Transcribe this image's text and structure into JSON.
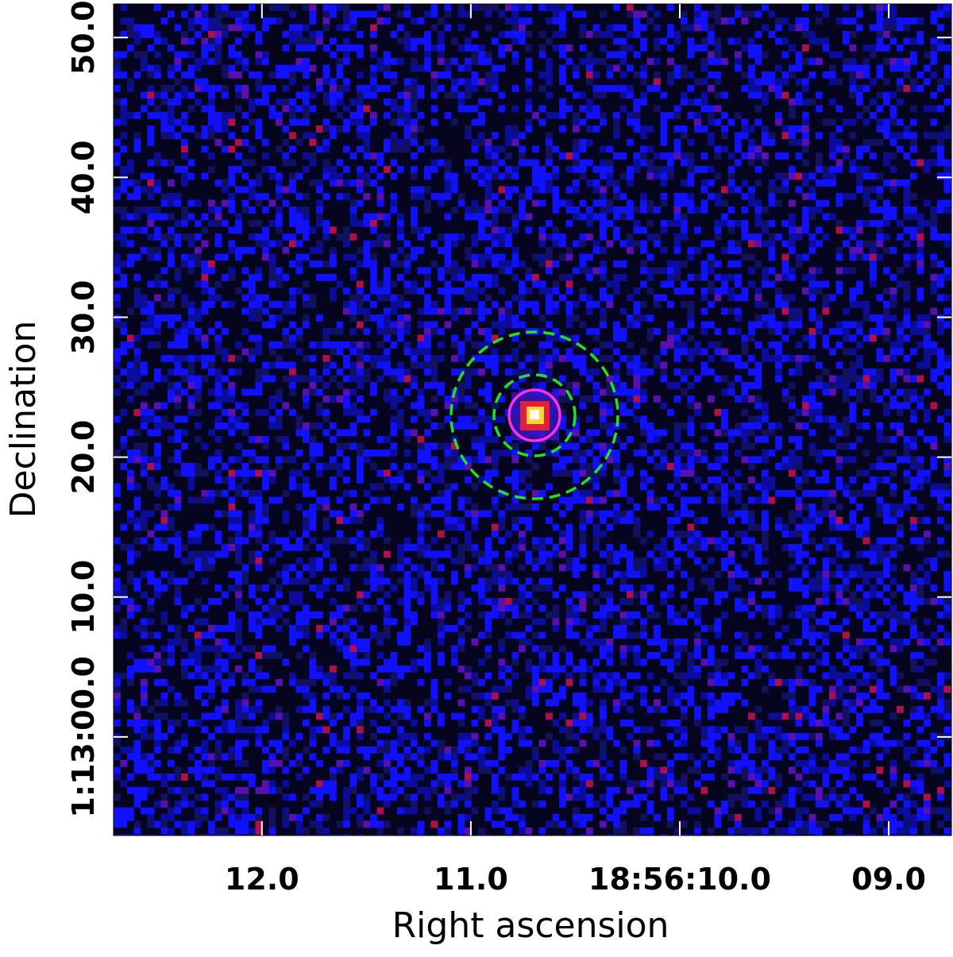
{
  "chart_data": {
    "type": "image",
    "xlabel": "Right ascension",
    "ylabel": "Declination",
    "xlim": [
      12.71,
      8.7
    ],
    "xticks": [
      {
        "value": 12,
        "label": "12.0"
      },
      {
        "value": 11,
        "label": "11.0"
      },
      {
        "value": 10,
        "label": "18:56:10.0"
      },
      {
        "value": 9,
        "label": "09.0"
      }
    ],
    "ylim": [
      -7.05,
      52.4
    ],
    "yticks": [
      {
        "value": 50,
        "label": "50.0"
      },
      {
        "value": 40,
        "label": "40.0"
      },
      {
        "value": 30,
        "label": "30.0"
      },
      {
        "value": 20,
        "label": "20.0"
      },
      {
        "value": 10,
        "label": "10.0"
      },
      {
        "value": 0,
        "label": "1:13:00.0"
      }
    ]
  }
}
